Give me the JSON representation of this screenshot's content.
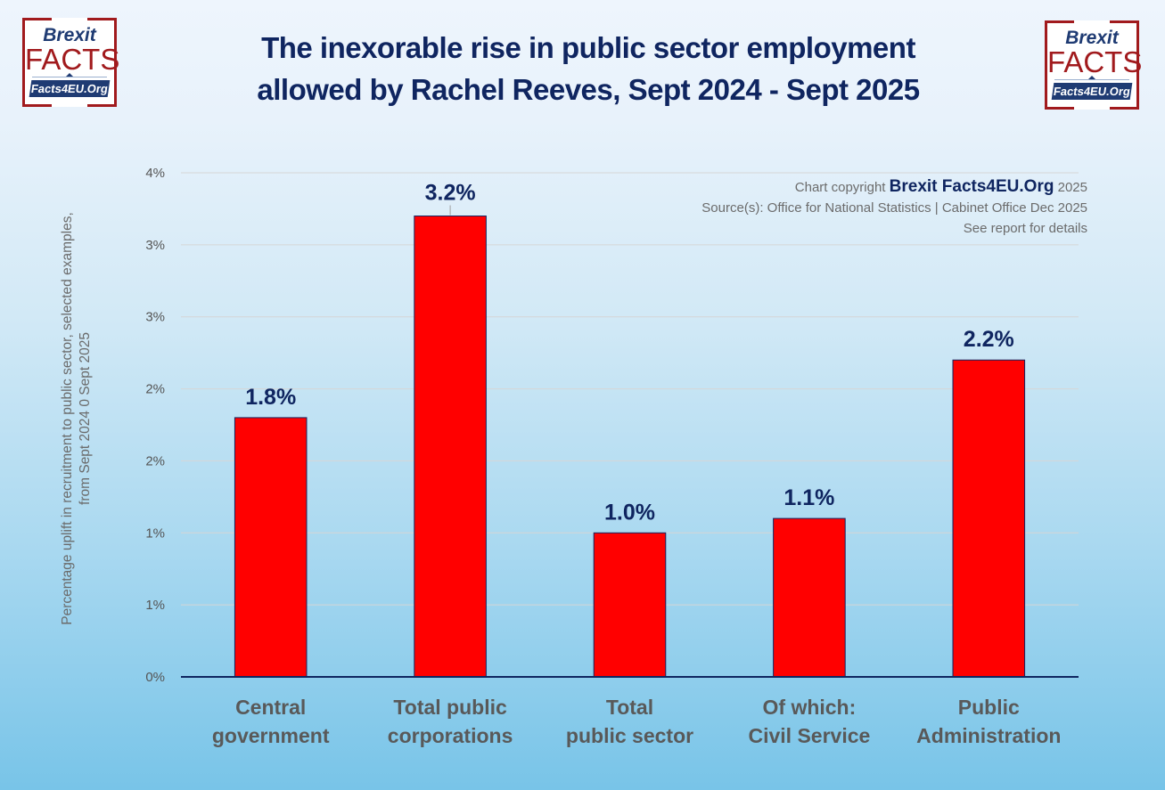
{
  "logos": {
    "line1": "Brexit",
    "line2": "FACTS",
    "line3": "Facts4EU.Org"
  },
  "credits": {
    "copyright_prefix": "Chart copyright",
    "copyright_brand": "Brexit Facts4EU.Org",
    "copyright_year": "2025",
    "source": "Source(s): Office for National Statistics | Cabinet Office Dec 2025",
    "note": "See report for details"
  },
  "colors": {
    "bar": "#ff0000",
    "bar_border": "#0f2560",
    "axis": "#0f2560",
    "grid": "#d6d6d6"
  },
  "chart_data": {
    "type": "bar",
    "title": "The inexorable rise in public sector employment allowed by Rachel Reeves, Sept 2024 - Sept 2025",
    "title_lines": [
      "The inexorable rise in public sector employment",
      "allowed by Rachel Reeves, Sept 2024 - Sept 2025"
    ],
    "xlabel": "",
    "ylabel": "Percentage uplift in recruitment to public sector, selected examples,",
    "ylabel_line2": "from Sept 2024 0 Sept 2025",
    "categories": [
      [
        "Central",
        "government"
      ],
      [
        "Total public",
        "corporations"
      ],
      [
        "Total",
        "public sector"
      ],
      [
        "Of which:",
        "Civil Service"
      ],
      [
        "Public",
        "Administration"
      ]
    ],
    "values": [
      1.8,
      3.2,
      1.0,
      1.1,
      2.2
    ],
    "data_labels": [
      "1.8%",
      "3.2%",
      "1.0%",
      "1.1%",
      "2.2%"
    ],
    "ylim": [
      0,
      3.5
    ],
    "yticks": [
      0,
      0.5,
      1,
      1.5,
      2,
      2.5,
      3,
      3.5
    ],
    "ytick_labels": [
      "0%",
      "1%",
      "1%",
      "2%",
      "2%",
      "3%",
      "3%",
      "4%"
    ],
    "grid": true,
    "legend": "none"
  }
}
